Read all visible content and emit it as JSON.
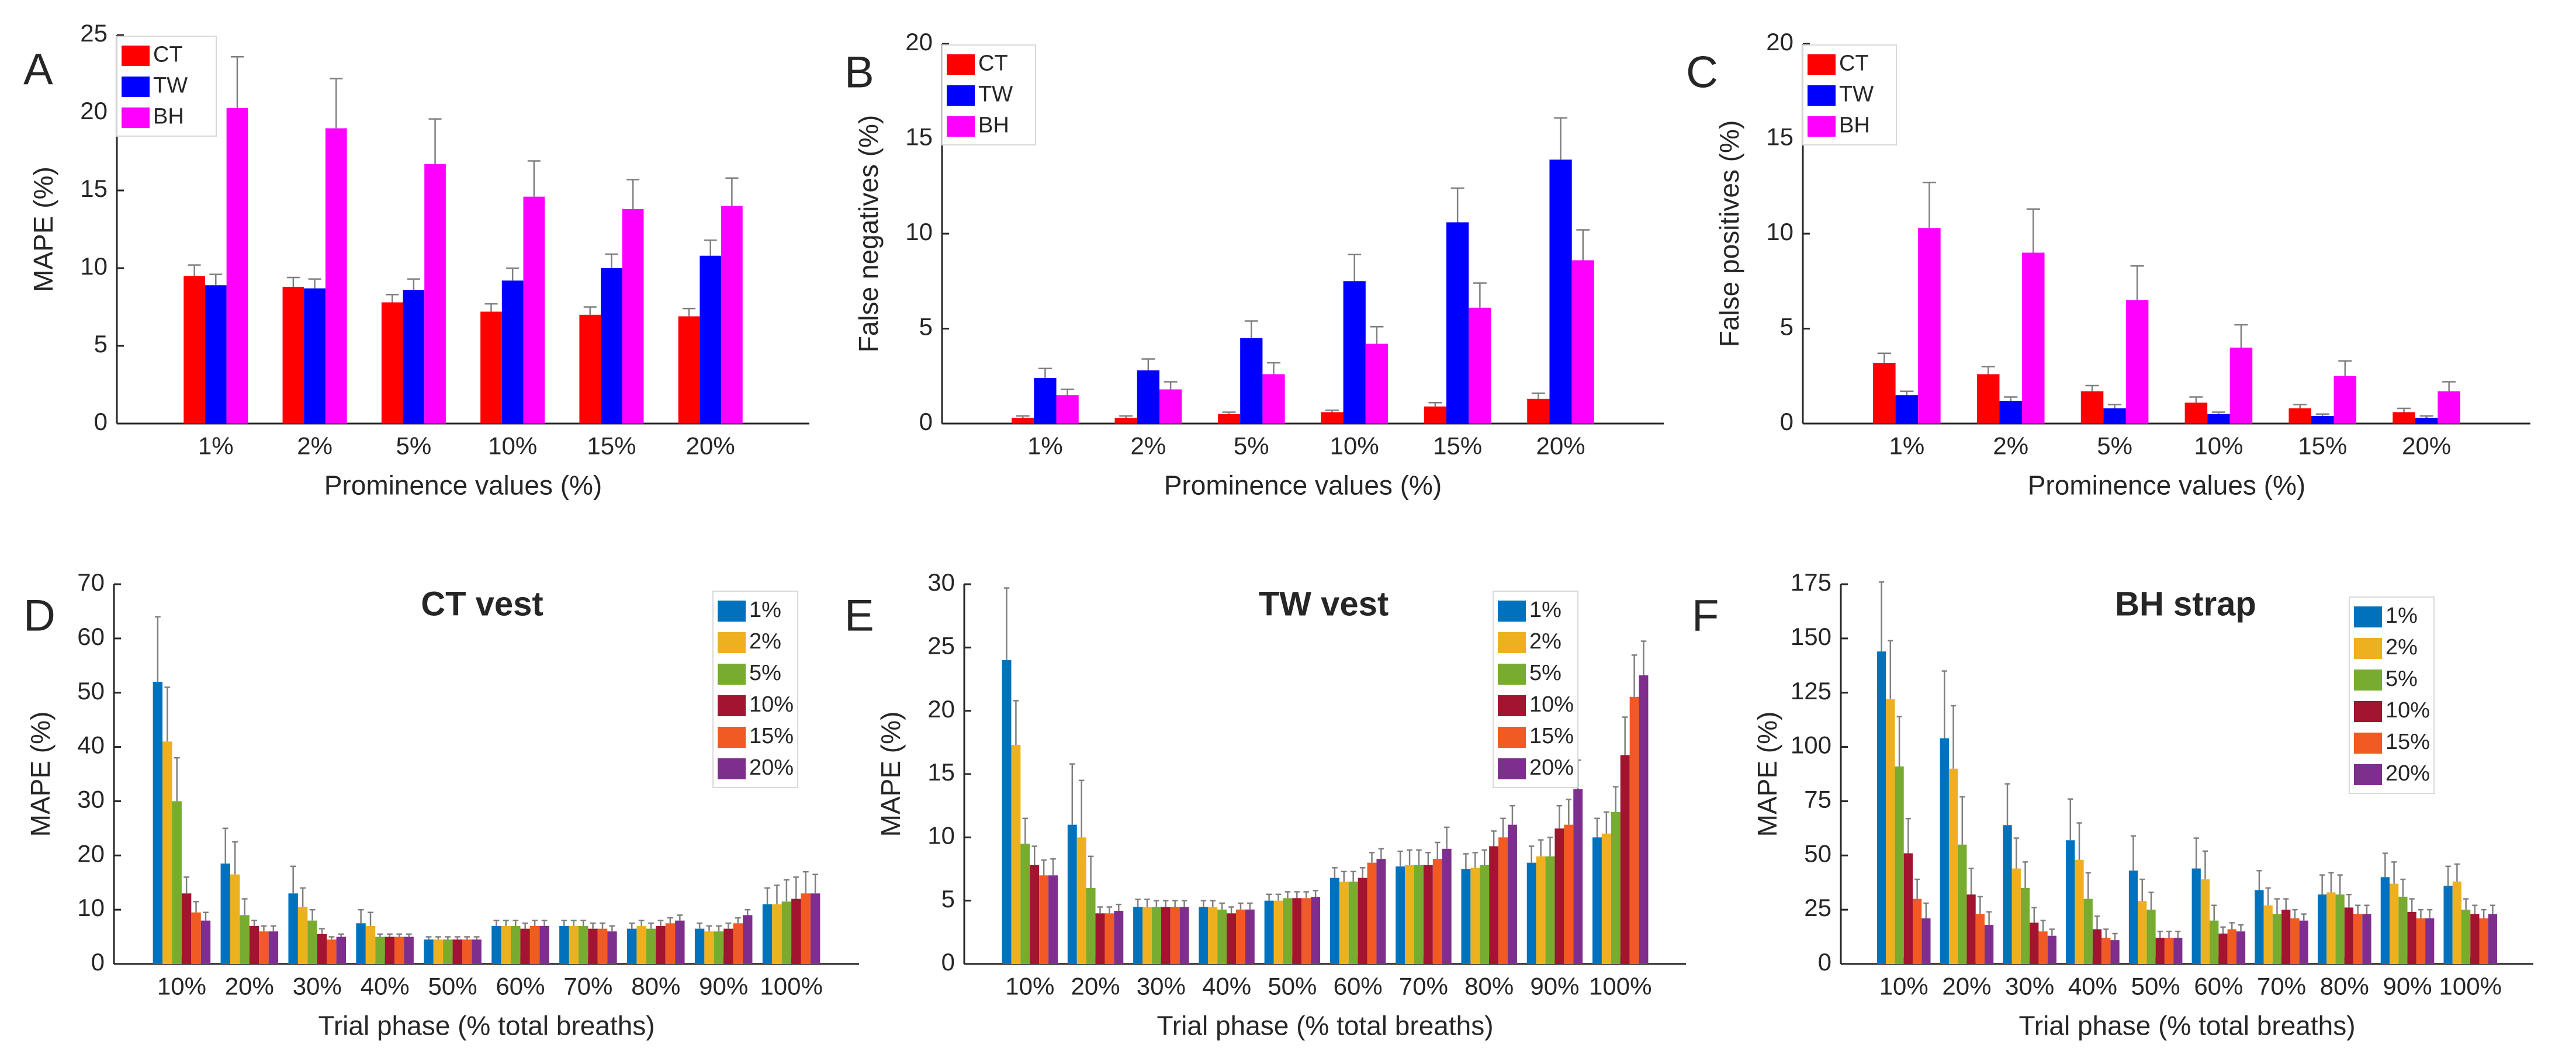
{
  "figure": {
    "description_free": true
  },
  "colors": {
    "CT": "#ff0000",
    "TW": "#0000ff",
    "BH": "#ff00ff",
    "p1": "#0072bd",
    "p2": "#edb120",
    "p5": "#77ac30",
    "p10": "#a2142f",
    "p15": "#f15a22",
    "p20": "#7e2f8e",
    "axis": "#262626",
    "error": "#7f7f7f"
  },
  "chart_data": [
    {
      "id": "A",
      "letter": "A",
      "type": "bar",
      "title": "",
      "xlabel": "Prominence values (%)",
      "ylabel": "MAPE (%)",
      "ylim": [
        0,
        25
      ],
      "yticks": [
        0,
        5,
        10,
        15,
        20,
        25
      ],
      "categories": [
        "1%",
        "2%",
        "5%",
        "10%",
        "15%",
        "20%"
      ],
      "legend_position": "top-left",
      "series": [
        {
          "name": "CT",
          "color_key": "CT",
          "values": [
            9.5,
            8.8,
            7.8,
            7.2,
            7.0,
            6.9
          ],
          "errors": [
            0.7,
            0.6,
            0.5,
            0.5,
            0.5,
            0.5
          ]
        },
        {
          "name": "TW",
          "color_key": "TW",
          "values": [
            8.9,
            8.7,
            8.6,
            9.2,
            10.0,
            10.8
          ],
          "errors": [
            0.7,
            0.6,
            0.7,
            0.8,
            0.9,
            1.0
          ]
        },
        {
          "name": "BH",
          "color_key": "BH",
          "values": [
            20.3,
            19.0,
            16.7,
            14.6,
            13.8,
            14.0
          ],
          "errors": [
            3.3,
            3.2,
            2.9,
            2.3,
            1.9,
            1.8
          ]
        }
      ]
    },
    {
      "id": "B",
      "letter": "B",
      "type": "bar",
      "title": "",
      "xlabel": "Prominence values (%)",
      "ylabel": "False negatives (%)",
      "ylim": [
        0,
        20
      ],
      "yticks": [
        0,
        5,
        10,
        15,
        20
      ],
      "categories": [
        "1%",
        "2%",
        "5%",
        "10%",
        "15%",
        "20%"
      ],
      "legend_position": "top-left",
      "series": [
        {
          "name": "CT",
          "color_key": "CT",
          "values": [
            0.3,
            0.3,
            0.5,
            0.6,
            0.9,
            1.3
          ],
          "errors": [
            0.1,
            0.1,
            0.1,
            0.1,
            0.2,
            0.3
          ]
        },
        {
          "name": "TW",
          "color_key": "TW",
          "values": [
            2.4,
            2.8,
            4.5,
            7.5,
            10.6,
            13.9
          ],
          "errors": [
            0.5,
            0.6,
            0.9,
            1.4,
            1.8,
            2.2
          ]
        },
        {
          "name": "BH",
          "color_key": "BH",
          "values": [
            1.5,
            1.8,
            2.6,
            4.2,
            6.1,
            8.6
          ],
          "errors": [
            0.3,
            0.4,
            0.6,
            0.9,
            1.3,
            1.6
          ]
        }
      ]
    },
    {
      "id": "C",
      "letter": "C",
      "type": "bar",
      "title": "",
      "xlabel": "Prominence values (%)",
      "ylabel": "False positives (%)",
      "ylim": [
        0,
        20
      ],
      "yticks": [
        0,
        5,
        10,
        15,
        20
      ],
      "categories": [
        "1%",
        "2%",
        "5%",
        "10%",
        "15%",
        "20%"
      ],
      "legend_position": "top-left",
      "series": [
        {
          "name": "CT",
          "color_key": "CT",
          "values": [
            3.2,
            2.6,
            1.7,
            1.1,
            0.8,
            0.6
          ],
          "errors": [
            0.5,
            0.4,
            0.3,
            0.3,
            0.2,
            0.2
          ]
        },
        {
          "name": "TW",
          "color_key": "TW",
          "values": [
            1.5,
            1.2,
            0.8,
            0.5,
            0.4,
            0.3
          ],
          "errors": [
            0.2,
            0.2,
            0.2,
            0.1,
            0.1,
            0.1
          ]
        },
        {
          "name": "BH",
          "color_key": "BH",
          "values": [
            10.3,
            9.0,
            6.5,
            4.0,
            2.5,
            1.7
          ],
          "errors": [
            2.4,
            2.3,
            1.8,
            1.2,
            0.8,
            0.5
          ]
        }
      ]
    },
    {
      "id": "D",
      "letter": "D",
      "type": "bar",
      "title": "CT vest",
      "xlabel": "Trial phase (% total breaths)",
      "ylabel": "MAPE (%)",
      "ylim": [
        0,
        70
      ],
      "yticks": [
        0,
        10,
        20,
        30,
        40,
        50,
        60,
        70
      ],
      "categories": [
        "10%",
        "20%",
        "30%",
        "40%",
        "50%",
        "60%",
        "70%",
        "80%",
        "90%",
        "100%"
      ],
      "legend_position": "top-right",
      "series": [
        {
          "name": "1%",
          "color_key": "p1",
          "values": [
            52,
            18.5,
            13,
            7.5,
            4.5,
            7,
            7,
            6.5,
            6.5,
            11
          ],
          "errors": [
            12,
            6.5,
            5,
            2.5,
            0.5,
            1,
            1,
            1,
            1,
            3
          ]
        },
        {
          "name": "2%",
          "color_key": "p2",
          "values": [
            41,
            16.5,
            10.5,
            7,
            4.5,
            7,
            7,
            7,
            6,
            11
          ],
          "errors": [
            10,
            6,
            3.5,
            2.5,
            0.5,
            1,
            1,
            1,
            1,
            3.5
          ]
        },
        {
          "name": "5%",
          "color_key": "p5",
          "values": [
            30,
            9,
            8,
            5,
            4.5,
            7,
            7,
            6.5,
            6,
            11.5
          ],
          "errors": [
            8,
            3,
            2,
            0.5,
            0.5,
            1,
            1,
            1,
            1,
            4
          ]
        },
        {
          "name": "10%",
          "color_key": "p10",
          "values": [
            13,
            7,
            5.5,
            5,
            4.5,
            6.5,
            6.5,
            7,
            6.5,
            12
          ],
          "errors": [
            3,
            1,
            1,
            0.5,
            0.5,
            1,
            1,
            1,
            1,
            4
          ]
        },
        {
          "name": "15%",
          "color_key": "p15",
          "values": [
            9.5,
            6,
            4.5,
            5,
            4.5,
            7,
            6.5,
            7.5,
            7.5,
            13
          ],
          "errors": [
            2,
            1,
            0.5,
            0.5,
            0.5,
            1,
            1,
            1,
            1,
            4
          ]
        },
        {
          "name": "20%",
          "color_key": "p20",
          "values": [
            8,
            6,
            5,
            5,
            4.5,
            7,
            6,
            8,
            9,
            13
          ],
          "errors": [
            1.5,
            1,
            0.5,
            0.5,
            0.5,
            1,
            1,
            1,
            1,
            3.5
          ]
        }
      ]
    },
    {
      "id": "E",
      "letter": "E",
      "type": "bar",
      "title": "TW vest",
      "xlabel": "Trial phase (% total breaths)",
      "ylabel": "MAPE (%)",
      "ylim": [
        0,
        30
      ],
      "yticks": [
        0,
        5,
        10,
        15,
        20,
        25,
        30
      ],
      "categories": [
        "10%",
        "20%",
        "30%",
        "40%",
        "50%",
        "60%",
        "70%",
        "80%",
        "90%",
        "100%"
      ],
      "legend_position": "top-right",
      "series": [
        {
          "name": "1%",
          "color_key": "p1",
          "values": [
            24,
            11,
            4.5,
            4.5,
            5,
            6.8,
            7.7,
            7.5,
            8,
            10
          ],
          "errors": [
            5.7,
            4.8,
            0.6,
            0.5,
            0.5,
            0.8,
            1.2,
            1.2,
            1.3,
            1.5
          ]
        },
        {
          "name": "2%",
          "color_key": "p2",
          "values": [
            17.3,
            10,
            4.5,
            4.5,
            5,
            6.5,
            7.8,
            7.6,
            8.5,
            10.3
          ],
          "errors": [
            3.5,
            4.5,
            0.6,
            0.5,
            0.5,
            0.8,
            1.2,
            1.2,
            1.3,
            1.7
          ]
        },
        {
          "name": "5%",
          "color_key": "p5",
          "values": [
            9.5,
            6,
            4.5,
            4.3,
            5.2,
            6.5,
            7.8,
            7.8,
            8.5,
            12
          ],
          "errors": [
            2,
            2.5,
            0.5,
            0.5,
            0.5,
            0.8,
            1.2,
            1.2,
            1.5,
            2
          ]
        },
        {
          "name": "10%",
          "color_key": "p10",
          "values": [
            7.8,
            4,
            4.5,
            4,
            5.2,
            6.8,
            7.8,
            9.3,
            10.7,
            16.5
          ],
          "errors": [
            1.5,
            0.5,
            0.5,
            0.5,
            0.5,
            0.8,
            1,
            1.2,
            1.8,
            3
          ]
        },
        {
          "name": "15%",
          "color_key": "p15",
          "values": [
            7,
            4,
            4.5,
            4.3,
            5.2,
            8,
            8.3,
            10,
            11,
            21.1
          ],
          "errors": [
            1.2,
            0.5,
            0.5,
            0.5,
            0.5,
            0.8,
            1.3,
            1.5,
            2,
            3.3
          ]
        },
        {
          "name": "20%",
          "color_key": "p20",
          "values": [
            7,
            4.2,
            4.5,
            4.3,
            5.3,
            8.3,
            9.1,
            11,
            13.8,
            22.8
          ],
          "errors": [
            1.3,
            0.5,
            0.5,
            0.5,
            0.5,
            0.8,
            1.7,
            1.5,
            2.3,
            2.7
          ]
        }
      ]
    },
    {
      "id": "F",
      "letter": "F",
      "type": "bar",
      "title": "BH strap",
      "xlabel": "Trial phase (% total breaths)",
      "ylabel": "MAPE (%)",
      "ylim": [
        0,
        175
      ],
      "yticks": [
        0,
        25,
        50,
        75,
        100,
        125,
        150,
        175
      ],
      "categories": [
        "10%",
        "20%",
        "30%",
        "40%",
        "50%",
        "60%",
        "70%",
        "80%",
        "90%",
        "100%"
      ],
      "legend_position": "top-right",
      "series": [
        {
          "name": "1%",
          "color_key": "p1",
          "values": [
            144,
            104,
            64,
            57,
            43,
            44,
            34,
            32,
            40,
            36
          ],
          "errors": [
            32,
            31,
            19,
            19,
            16,
            14,
            9,
            9,
            11,
            9
          ]
        },
        {
          "name": "2%",
          "color_key": "p2",
          "values": [
            122,
            90,
            44,
            48,
            29,
            39,
            27,
            33,
            37,
            38
          ],
          "errors": [
            27,
            29,
            14,
            17,
            10,
            13,
            8,
            9,
            10,
            8
          ]
        },
        {
          "name": "5%",
          "color_key": "p5",
          "values": [
            91,
            55,
            35,
            30,
            25,
            20,
            23,
            32,
            31,
            25
          ],
          "errors": [
            23,
            22,
            12,
            12,
            8,
            7,
            7,
            9,
            8,
            5
          ]
        },
        {
          "name": "10%",
          "color_key": "p10",
          "values": [
            51,
            32,
            19,
            16,
            12,
            14,
            25,
            26,
            24,
            23
          ],
          "errors": [
            16,
            12,
            7,
            6,
            3,
            3,
            5,
            6,
            6,
            4
          ]
        },
        {
          "name": "15%",
          "color_key": "p15",
          "values": [
            30,
            23,
            15,
            12,
            12,
            16,
            21,
            23,
            21,
            21
          ],
          "errors": [
            9,
            8,
            5,
            4,
            3,
            3,
            4,
            4,
            4,
            4
          ]
        },
        {
          "name": "20%",
          "color_key": "p20",
          "values": [
            21,
            18,
            13,
            11,
            12,
            15,
            20,
            23,
            21,
            23
          ],
          "errors": [
            7,
            6,
            3,
            3,
            3,
            3,
            3,
            4,
            4,
            4
          ]
        }
      ]
    }
  ]
}
